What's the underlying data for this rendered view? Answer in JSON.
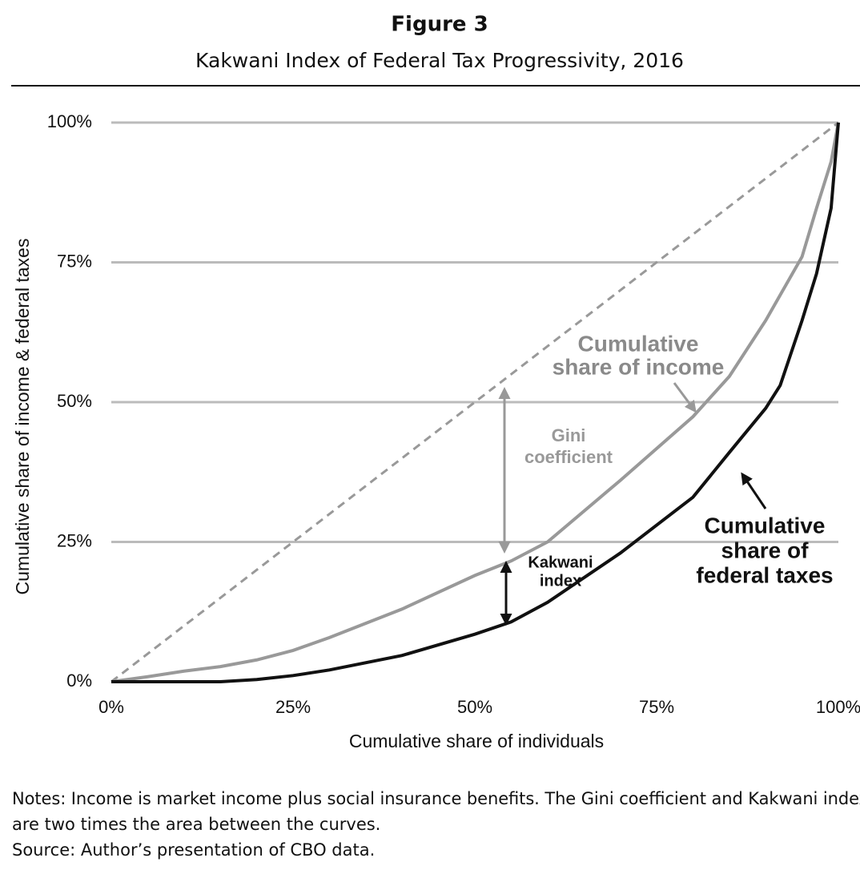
{
  "chart_data": {
    "type": "line",
    "title": "Figure 3",
    "subtitle": "Kakwani Index of Federal Tax Progressivity, 2016",
    "x_label": "Cumulative share of individuals",
    "y_label": "Cumulative share of income & federal taxes",
    "xlim": [
      0,
      100
    ],
    "ylim": [
      0,
      100
    ],
    "xticks": [
      {
        "value": 0,
        "label": "0%"
      },
      {
        "value": 25,
        "label": "25%"
      },
      {
        "value": 50,
        "label": "50%"
      },
      {
        "value": 75,
        "label": "75%"
      },
      {
        "value": 100,
        "label": "100%"
      }
    ],
    "yticks": [
      {
        "value": 0,
        "label": "0%"
      },
      {
        "value": 25,
        "label": "25%"
      },
      {
        "value": 50,
        "label": "50%"
      },
      {
        "value": 75,
        "label": "75%"
      },
      {
        "value": 100,
        "label": "100%"
      }
    ],
    "grid": true,
    "series": [
      {
        "color": "#999999",
        "dashed": true,
        "x": [
          0,
          100
        ],
        "values": [
          0,
          100
        ]
      },
      {
        "color": "#999999",
        "dashed": false,
        "x": [
          0,
          5,
          10,
          15,
          20,
          25,
          30,
          40,
          50,
          55,
          60,
          70,
          80,
          85,
          90,
          95,
          97,
          99,
          100
        ],
        "values": [
          0,
          0.9,
          1.9,
          2.7,
          3.9,
          5.6,
          7.9,
          13,
          19,
          21.6,
          25,
          36,
          47.4,
          54.6,
          64.6,
          76,
          84.7,
          93,
          100
        ]
      },
      {
        "color": "#111111",
        "dashed": false,
        "x": [
          0,
          15,
          20,
          25,
          30,
          40,
          50,
          55,
          60,
          70,
          75,
          80,
          85,
          90,
          92,
          95,
          97,
          99,
          100
        ],
        "values": [
          0,
          0,
          0.4,
          1.1,
          2.1,
          4.7,
          8.5,
          10.7,
          14.2,
          23,
          28,
          33,
          41,
          48.9,
          53,
          64.6,
          73,
          84.7,
          100
        ]
      }
    ],
    "annotations": {
      "income": [
        "Cumulative",
        "share of income"
      ],
      "gini": [
        "Gini",
        "coefficient"
      ],
      "kakwani": [
        "Kakwani",
        "index"
      ],
      "taxes": [
        "Cumulative",
        "share of",
        "federal taxes"
      ]
    },
    "notes": [
      "Notes: Income is market income plus social insurance benefits. The Gini coefficient and Kakwani index",
      "are two times the area between the curves."
    ],
    "source": "Source: Author’s presentation of CBO data."
  }
}
